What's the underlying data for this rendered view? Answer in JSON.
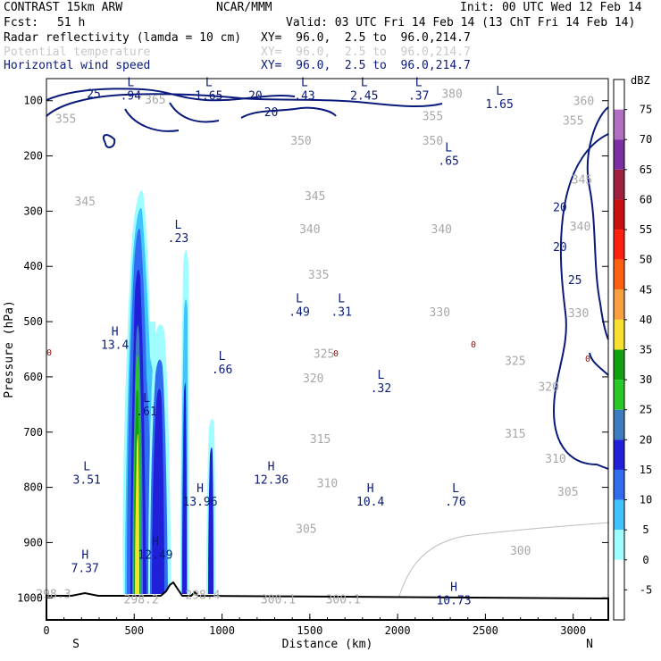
{
  "header": {
    "model": "CONTRAST 15km ARW",
    "org": "NCAR/MMM",
    "init": "Init: 00 UTC Wed 12 Feb 14",
    "fcst_label": "Fcst:",
    "fcst_value": "51 h",
    "valid": "Valid: 03 UTC Fri 14 Feb 14 (13 ChT Fri 14 Feb 14)",
    "fields": [
      {
        "name": "Radar reflectivity (lamda = 10 cm)",
        "xy": "XY=  96.0,  2.5 to  96.0,214.7",
        "color": "#000000"
      },
      {
        "name": "Potential temperature",
        "xy": "XY=  96.0,  2.5 to  96.0,214.7",
        "color": "#c8c8c8"
      },
      {
        "name": "Horizontal wind speed",
        "xy": "XY=  96.0,  2.5 to  96.0,214.7",
        "color": "#0a1a7a"
      }
    ]
  },
  "chart_data": {
    "type": "vertical cross-section (contour + filled)",
    "xlabel": "Distance (km)",
    "ylabel": "Pressure (hPa)",
    "xlim": [
      0,
      3200
    ],
    "ylim": [
      1040,
      60
    ],
    "x_ticks": [
      "0",
      "500",
      "1000",
      "1500",
      "2000",
      "2500",
      "3000"
    ],
    "y_ticks": [
      "100",
      "200",
      "300",
      "400",
      "500",
      "600",
      "700",
      "800",
      "900",
      "1000"
    ],
    "end_labels": {
      "left": "S",
      "right": "N"
    },
    "colorbar": {
      "unit": "dBZ",
      "levels": [
        "-5",
        "0",
        "5",
        "10",
        "15",
        "20",
        "25",
        "30",
        "35",
        "40",
        "45",
        "50",
        "55",
        "60",
        "65",
        "70",
        "75"
      ],
      "colors": [
        "#ffffff",
        "#ffffff",
        "#9ffcff",
        "#40c4ff",
        "#2f6cf0",
        "#2020d8",
        "#3e7cc0",
        "#28c828",
        "#10a010",
        "#f8e030",
        "#f8a040",
        "#ff6010",
        "#ff2010",
        "#c81010",
        "#a02040",
        "#7a30a0",
        "#b070c0",
        "#ffffff"
      ]
    },
    "theta_labels": [
      {
        "text": "380",
        "x": 2310,
        "p": 95
      },
      {
        "text": "365",
        "x": 620,
        "p": 105
      },
      {
        "text": "360",
        "x": 3060,
        "p": 108
      },
      {
        "text": "355",
        "x": 110,
        "p": 140
      },
      {
        "text": "355",
        "x": 2200,
        "p": 135
      },
      {
        "text": "355",
        "x": 3000,
        "p": 143
      },
      {
        "text": "350",
        "x": 1450,
        "p": 180
      },
      {
        "text": "350",
        "x": 2200,
        "p": 180
      },
      {
        "text": "345",
        "x": 220,
        "p": 290
      },
      {
        "text": "345",
        "x": 1530,
        "p": 280
      },
      {
        "text": "345",
        "x": 3050,
        "p": 250
      },
      {
        "text": "340",
        "x": 1500,
        "p": 340
      },
      {
        "text": "340",
        "x": 2250,
        "p": 340
      },
      {
        "text": "340",
        "x": 3040,
        "p": 335
      },
      {
        "text": "335",
        "x": 1550,
        "p": 422
      },
      {
        "text": "330",
        "x": 2240,
        "p": 490
      },
      {
        "text": "330",
        "x": 3030,
        "p": 492
      },
      {
        "text": "325",
        "x": 1580,
        "p": 565
      },
      {
        "text": "325",
        "x": 2670,
        "p": 578
      },
      {
        "text": "320",
        "x": 1520,
        "p": 610
      },
      {
        "text": "320",
        "x": 2860,
        "p": 625
      },
      {
        "text": "315",
        "x": 1560,
        "p": 720
      },
      {
        "text": "315",
        "x": 2670,
        "p": 710
      },
      {
        "text": "310",
        "x": 1600,
        "p": 800
      },
      {
        "text": "310",
        "x": 2900,
        "p": 755
      },
      {
        "text": "305",
        "x": 1480,
        "p": 882
      },
      {
        "text": "305",
        "x": 2970,
        "p": 815
      },
      {
        "text": "300",
        "x": 2700,
        "p": 922
      },
      {
        "text": "300.1",
        "x": 1320,
        "p": 1010
      },
      {
        "text": "300.1",
        "x": 1690,
        "p": 1010
      },
      {
        "text": "298.3",
        "x": 40,
        "p": 1000
      },
      {
        "text": "298.2",
        "x": 540,
        "p": 1010
      },
      {
        "text": "298.4",
        "x": 890,
        "p": 1002
      }
    ],
    "wind_labels": [
      {
        "text": "25",
        "x": 270,
        "p": 95
      },
      {
        "text": "20",
        "x": 1190,
        "p": 98
      },
      {
        "text": "20",
        "x": 1280,
        "p": 128
      },
      {
        "text": "20",
        "x": 2925,
        "p": 300
      },
      {
        "text": "20",
        "x": 2925,
        "p": 372
      },
      {
        "text": "25",
        "x": 3010,
        "p": 432
      }
    ],
    "extrema": [
      {
        "kind": "L",
        "value": ".94",
        "x": 480,
        "p": 87
      },
      {
        "kind": "L",
        "value": "1.65",
        "x": 925,
        "p": 87
      },
      {
        "kind": "L",
        "value": ".43",
        "x": 1470,
        "p": 87
      },
      {
        "kind": "L",
        "value": "2.45",
        "x": 1810,
        "p": 87
      },
      {
        "kind": "L",
        "value": ".37",
        "x": 2120,
        "p": 87
      },
      {
        "kind": "L",
        "value": "1.65",
        "x": 2580,
        "p": 102
      },
      {
        "kind": "L",
        "value": ".65",
        "x": 2290,
        "p": 205
      },
      {
        "kind": "L",
        "value": ".23",
        "x": 750,
        "p": 345
      },
      {
        "kind": "L",
        "value": ".49",
        "x": 1440,
        "p": 478
      },
      {
        "kind": "L",
        "value": ".31",
        "x": 1680,
        "p": 478
      },
      {
        "kind": "H",
        "value": "13.4",
        "x": 390,
        "p": 538
      },
      {
        "kind": "L",
        "value": ".66",
        "x": 1000,
        "p": 582
      },
      {
        "kind": "L",
        "value": ".32",
        "x": 1905,
        "p": 616
      },
      {
        "kind": "L",
        "value": ".61",
        "x": 570,
        "p": 658
      },
      {
        "kind": "L",
        "value": "3.51",
        "x": 230,
        "p": 782
      },
      {
        "kind": "H",
        "value": "12.36",
        "x": 1280,
        "p": 782
      },
      {
        "kind": "H",
        "value": "13.96",
        "x": 875,
        "p": 822
      },
      {
        "kind": "H",
        "value": "10.4",
        "x": 1845,
        "p": 822
      },
      {
        "kind": "L",
        "value": ".76",
        "x": 2330,
        "p": 822
      },
      {
        "kind": "H",
        "value": "12.49",
        "x": 620,
        "p": 918
      },
      {
        "kind": "H",
        "value": "7.37",
        "x": 220,
        "p": 942
      },
      {
        "kind": "H",
        "value": "10.73",
        "x": 2320,
        "p": 1000
      }
    ],
    "zero_isotherm_label": "0"
  }
}
